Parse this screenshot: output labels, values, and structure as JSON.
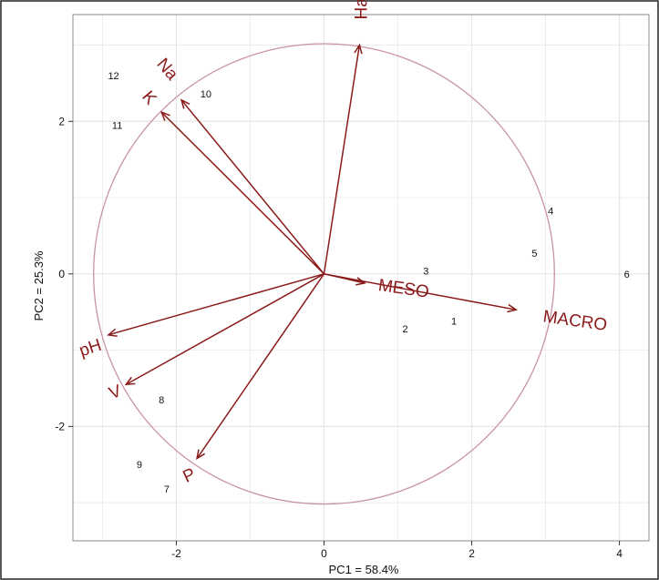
{
  "chart_data": {
    "type": "biplot",
    "title": "",
    "xlabel": "PC1 = 58.4%",
    "ylabel": "PC2 = 25.3%",
    "xlim": [
      -3.4,
      4.4
    ],
    "ylim": [
      -3.5,
      3.4
    ],
    "xticks": [
      -2,
      0,
      2,
      4
    ],
    "yticks": [
      -2,
      0,
      2
    ],
    "grid": true,
    "legend": "none",
    "circle": {
      "cx": 0,
      "cy": 0,
      "r": 3.12
    },
    "vectors": [
      {
        "label": "Ha",
        "x": 0.48,
        "y": 3.0
      },
      {
        "label": "Na",
        "x": -1.93,
        "y": 2.28
      },
      {
        "label": "K",
        "x": -2.2,
        "y": 2.12
      },
      {
        "label": "MESO",
        "x": 0.55,
        "y": -0.12
      },
      {
        "label": "MACRO",
        "x": 2.6,
        "y": -0.47
      },
      {
        "label": "pH",
        "x": -2.92,
        "y": -0.8
      },
      {
        "label": "V",
        "x": -2.68,
        "y": -1.45
      },
      {
        "label": "P",
        "x": -1.72,
        "y": -2.42
      }
    ],
    "points": [
      {
        "label": "1",
        "x": 1.76,
        "y": -0.62
      },
      {
        "label": "2",
        "x": 1.1,
        "y": -0.72
      },
      {
        "label": "3",
        "x": 1.38,
        "y": 0.04
      },
      {
        "label": "4",
        "x": 3.07,
        "y": 0.83
      },
      {
        "label": "5",
        "x": 2.85,
        "y": 0.27
      },
      {
        "label": "6",
        "x": 4.1,
        "y": 0.0
      },
      {
        "label": "7",
        "x": -2.13,
        "y": -2.82
      },
      {
        "label": "8",
        "x": -2.2,
        "y": -1.65
      },
      {
        "label": "9",
        "x": -2.5,
        "y": -2.5
      },
      {
        "label": "10",
        "x": -1.6,
        "y": 2.36
      },
      {
        "label": "11",
        "x": -2.8,
        "y": 1.95
      },
      {
        "label": "12",
        "x": -2.85,
        "y": 2.6
      }
    ],
    "colors": {
      "vector": "#8b1a1a",
      "circle": "#c993a6",
      "grid": "#e6e6e6",
      "text": "#111111"
    }
  }
}
